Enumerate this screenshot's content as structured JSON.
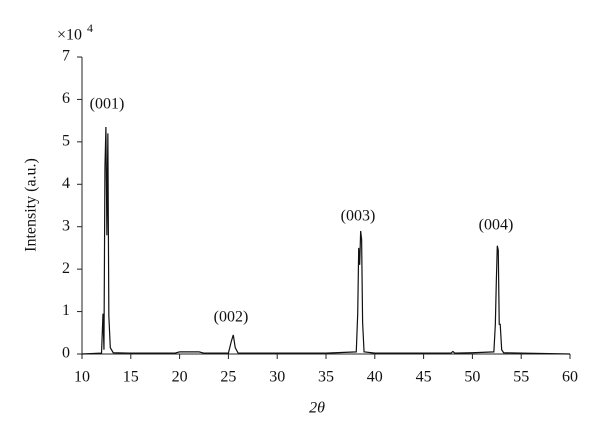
{
  "chart_data": {
    "type": "line",
    "x_label": "2θ",
    "y_label": "Intensity (a.u.)",
    "y_multiplier": {
      "base": "×10",
      "exponent": "4"
    },
    "annotations": [
      "(001)",
      "(002)",
      "(003)",
      "(004)"
    ],
    "color": "#111111",
    "x": [
      10,
      12.0,
      12.15,
      12.25,
      12.35,
      12.45,
      12.55,
      12.65,
      12.75,
      12.9,
      13.2,
      15,
      19.5,
      20,
      22,
      22.5,
      25,
      25.3,
      25.5,
      25.7,
      26,
      30,
      35,
      38.1,
      38.25,
      38.35,
      38.45,
      38.55,
      38.65,
      38.75,
      38.9,
      40,
      47.8,
      48,
      48.2,
      50,
      52.2,
      52.35,
      52.45,
      52.55,
      52.65,
      52.75,
      52.85,
      53.0,
      53.2,
      55,
      60
    ],
    "values": [
      0,
      0.02,
      0.95,
      0.1,
      4.4,
      5.35,
      2.8,
      5.2,
      0.9,
      0.15,
      0.03,
      0.02,
      0.02,
      0.05,
      0.05,
      0.02,
      0.02,
      0.3,
      0.45,
      0.15,
      0.02,
      0.02,
      0.02,
      0.05,
      0.95,
      2.5,
      2.1,
      2.9,
      2.7,
      0.75,
      0.05,
      0.02,
      0.02,
      0.06,
      0.02,
      0.03,
      0.05,
      0.7,
      1.7,
      2.55,
      2.45,
      0.7,
      0.7,
      0.1,
      0.03,
      0.02,
      0
    ],
    "xlim": [
      10,
      60
    ],
    "xticks": [
      10,
      15,
      20,
      25,
      30,
      35,
      40,
      45,
      50,
      55,
      60
    ],
    "ylim": [
      0,
      7
    ],
    "yticks": [
      0,
      1,
      2,
      3,
      4,
      5,
      6,
      7
    ]
  }
}
